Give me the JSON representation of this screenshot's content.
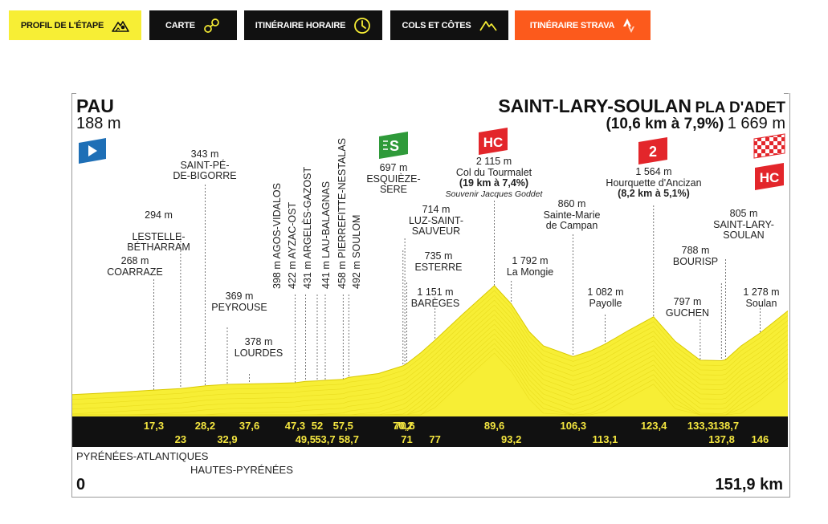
{
  "tabs": [
    {
      "id": "profil",
      "label": "PROFIL DE L'ÉTAPE",
      "icon": "mountain-pin-icon",
      "bg": "#f7ee35",
      "fg": "#111111"
    },
    {
      "id": "carte",
      "label": "CARTE",
      "icon": "route-map-icon",
      "bg": "#111111",
      "fg": "#ffffff"
    },
    {
      "id": "horaire",
      "label": "ITINÉRAIRE HORAIRE",
      "icon": "clock-icon",
      "bg": "#111111",
      "fg": "#ffffff"
    },
    {
      "id": "cols",
      "label": "COLS ET CÔTES",
      "icon": "climb-icon",
      "bg": "#111111",
      "fg": "#ffffff"
    },
    {
      "id": "strava",
      "label": "ITINÉRAIRE STRAVA",
      "icon": "strava-logo-icon",
      "bg": "#fc5a1c",
      "fg": "#ffffff"
    }
  ],
  "colors": {
    "profile_fill": "#f7ee35",
    "profile_edge": "#e0d100",
    "axis_band": "#111111",
    "km_text": "#f4e640",
    "start_flag": "#1e6fb6",
    "sprint_badge": "#2f9a3a",
    "climb_badge": "#e3262b"
  },
  "start": {
    "name": "PAU",
    "altitude": "188 m"
  },
  "finish": {
    "name": "SAINT-LARY-SOULAN",
    "suffix": "PLA D'ADET",
    "climb": "(10,6 km à 7,9%)",
    "altitude": "1 669 m"
  },
  "badges": {
    "sprint": "S",
    "hc": "HC",
    "cat2": "2"
  },
  "waypoints": [
    {
      "alt": "268 m",
      "name": "COARRAZE"
    },
    {
      "alt": "294 m",
      "name": "LESTELLE-\nBÉTHARRAM"
    },
    {
      "alt": "343 m",
      "name": "SAINT-PÉ-\nDE-BIGORRE"
    },
    {
      "alt": "369 m",
      "name": "PEYROUSE"
    },
    {
      "alt": "378 m",
      "name": "LOURDES"
    },
    {
      "alt": "697 m",
      "name": "ESQUIÈZE-\nSERE"
    },
    {
      "alt": "714 m",
      "name": "LUZ-SAINT-\nSAUVEUR"
    },
    {
      "alt": "735 m",
      "name": "ESTERRE"
    },
    {
      "alt": "1 151 m",
      "name": "BARÈGES"
    },
    {
      "alt": "2 115 m",
      "name": "Col du Tourmalet",
      "extra": "(19 km à 7,4%)",
      "note": "Souvenir Jacques Goddet"
    },
    {
      "alt": "1 792 m",
      "name": "La Mongie"
    },
    {
      "alt": "860 m",
      "name": "Sainte-Marie\nde Campan"
    },
    {
      "alt": "1 082 m",
      "name": "Payolle"
    },
    {
      "alt": "1 564 m",
      "name": "Hourquette d'Ancizan",
      "extra": "(8,2 km à 5,1%)"
    },
    {
      "alt": "797 m",
      "name": "GUCHEN"
    },
    {
      "alt": "788 m",
      "name": "BOURISP"
    },
    {
      "alt": "805 m",
      "name": "SAINT-LARY-\nSOULAN"
    },
    {
      "alt": "1 278 m",
      "name": "Soulan"
    }
  ],
  "vertical_waypoints": [
    "398 m AGOS-VIDALOS",
    "422 m AYZAC-OST",
    "431 m ARGELÈS-GAZOST",
    "441 m LAU-BALAGNAS",
    "458 m PIERREFITTE-NESTALAS",
    "492 m SOULOM"
  ],
  "km_top": [
    "17,3",
    "28,2",
    "37,6",
    "47,3",
    "52",
    "57,5",
    "70,2",
    "70,6",
    "89,6",
    "106,3",
    "123,4",
    "133,3",
    "138,7"
  ],
  "km_bottom": [
    "23",
    "32,9",
    "49,5",
    "53,7",
    "58,7",
    "71",
    "77",
    "93,2",
    "113,1",
    "137,8",
    "146"
  ],
  "regions": [
    "PYRÉNÉES-ATLANTIQUES",
    "HAUTES-PYRÉNÉES"
  ],
  "distance": {
    "start": "0",
    "end": "151,9 km"
  },
  "chart_data": {
    "type": "area",
    "xlabel": "",
    "ylabel": "",
    "xlim": [
      0,
      151.9
    ],
    "ylim": [
      0,
      2115
    ],
    "x": [
      0,
      10,
      17.3,
      23,
      28.2,
      32.9,
      37.6,
      42,
      47.3,
      49.5,
      52,
      53.7,
      57.5,
      58.7,
      65,
      70.2,
      70.6,
      71,
      74,
      77,
      83,
      89.6,
      93.2,
      97,
      100,
      106.3,
      110,
      113.1,
      118,
      123.4,
      128,
      133.3,
      137.8,
      138.7,
      142,
      146,
      151.9
    ],
    "y": [
      188,
      230,
      268,
      294,
      343,
      369,
      378,
      385,
      398,
      422,
      431,
      441,
      458,
      492,
      560,
      697,
      714,
      735,
      930,
      1151,
      1620,
      2115,
      1792,
      1300,
      1050,
      860,
      960,
      1082,
      1320,
      1564,
      1130,
      797,
      788,
      805,
      1050,
      1278,
      1669
    ]
  }
}
